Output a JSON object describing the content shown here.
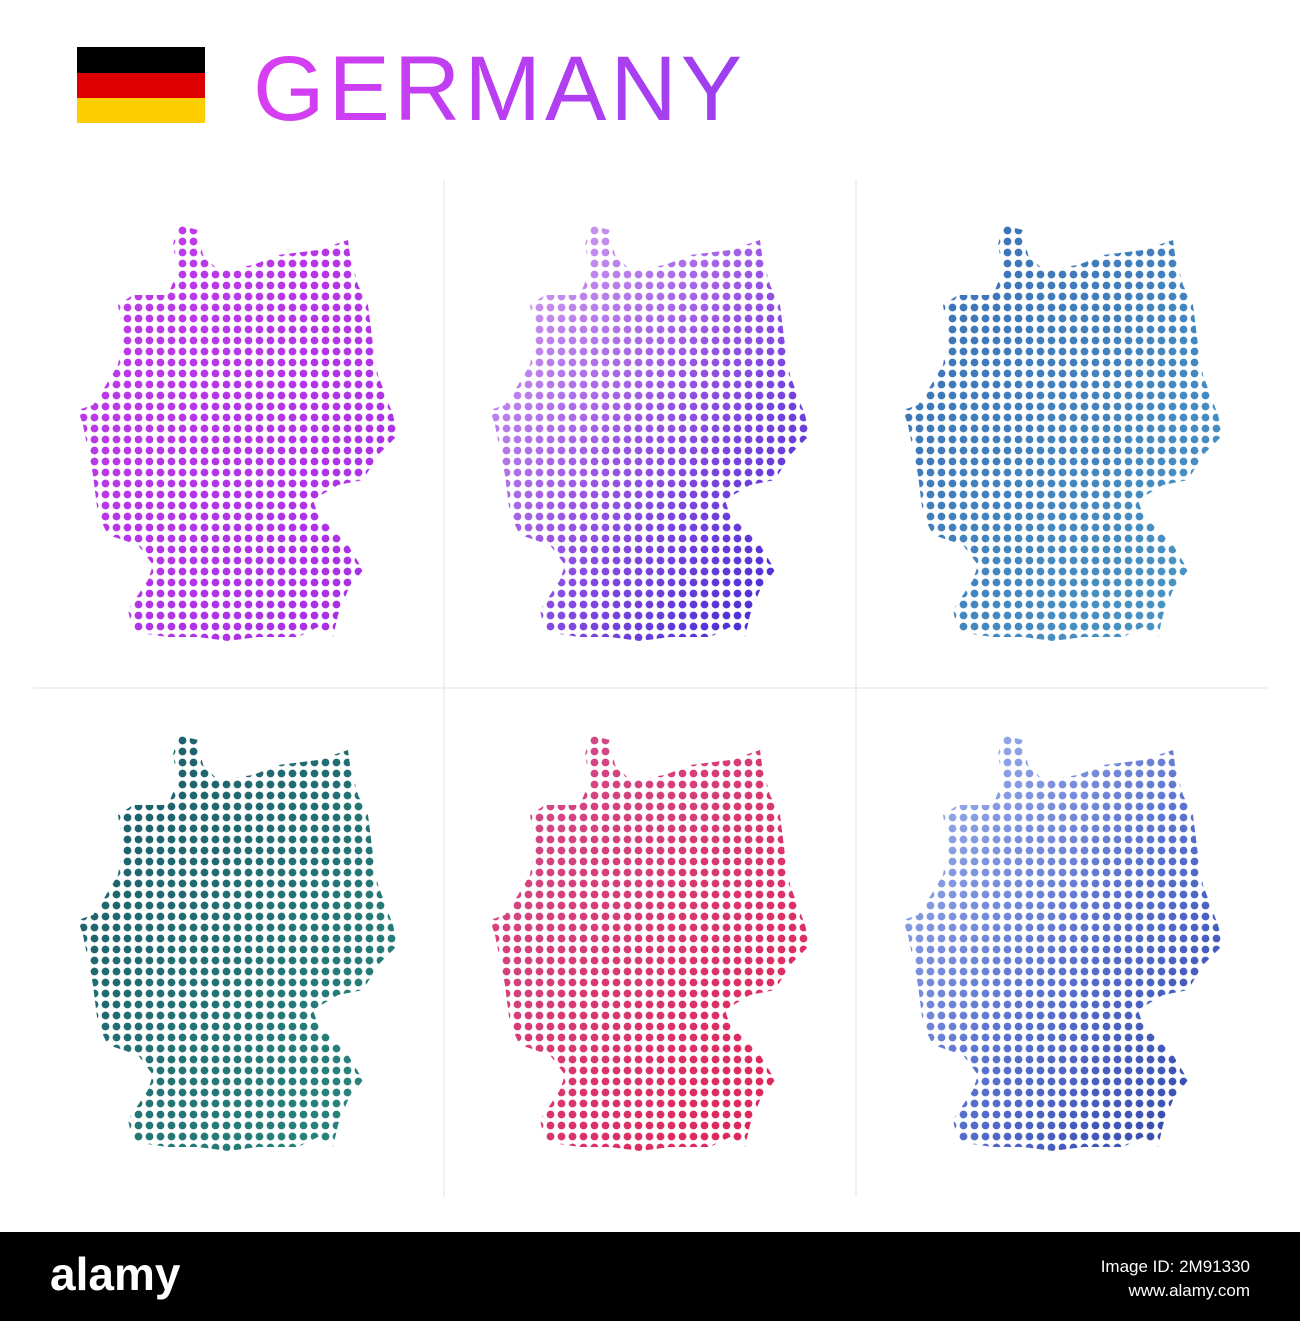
{
  "header": {
    "title": "GERMANY"
  },
  "footer": {
    "brand": "alamy",
    "image_id": "Image ID: 2M91330",
    "url": "www.alamy.com"
  }
}
